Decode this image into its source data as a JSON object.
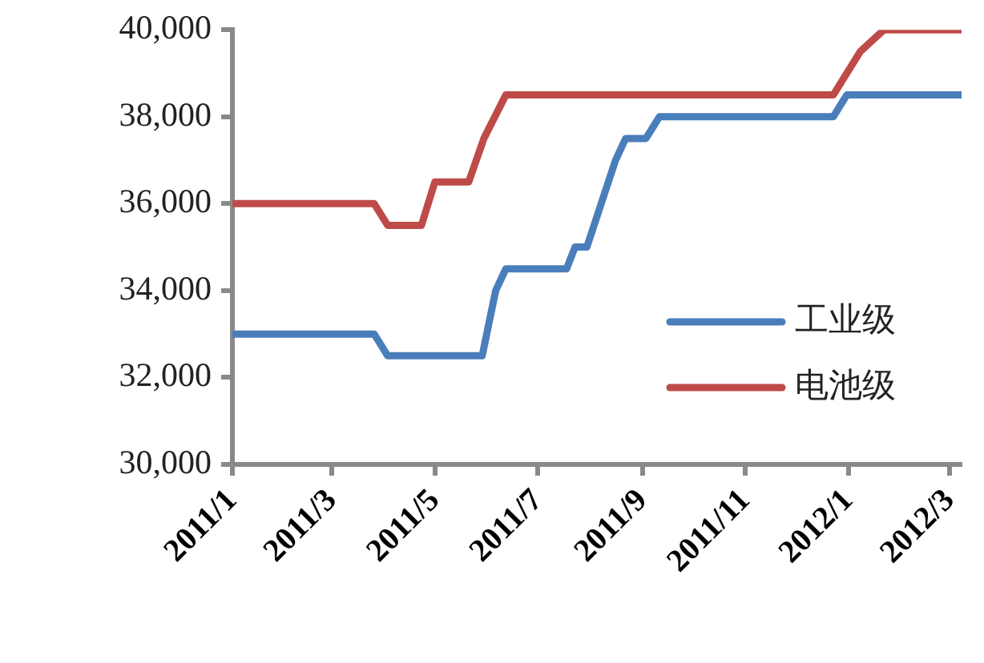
{
  "chart_data": {
    "type": "line",
    "series": [
      {
        "name": "工业级",
        "color": "#4a7ebb",
        "x": [
          "2011-01-01",
          "2011-03-26",
          "2011-04-03",
          "2011-05-29",
          "2011-06-06",
          "2011-06-12",
          "2011-07-18",
          "2011-07-23",
          "2011-07-30",
          "2011-08-16",
          "2011-08-22",
          "2011-09-03",
          "2011-09-11",
          "2011-12-23",
          "2011-12-31",
          "2012-03-08"
        ],
        "values": [
          33000,
          33000,
          32500,
          32500,
          34000,
          34500,
          34500,
          35000,
          35000,
          37000,
          37500,
          37500,
          38000,
          38000,
          38500,
          38500
        ]
      },
      {
        "name": "电池级",
        "color": "#be4b48",
        "x": [
          "2011-01-01",
          "2011-03-26",
          "2011-04-03",
          "2011-04-23",
          "2011-05-01",
          "2011-05-21",
          "2011-05-30",
          "2011-06-12",
          "2011-12-23",
          "2012-01-08",
          "2012-01-22",
          "2012-03-08"
        ],
        "values": [
          36000,
          36000,
          35500,
          35500,
          36500,
          36500,
          37500,
          38500,
          38500,
          39500,
          40000,
          40000
        ]
      }
    ],
    "xlim": [
      "2011-01-01",
      "2012-03-08"
    ],
    "xticks": [
      {
        "value": "2011-01-01",
        "label": "2011/1"
      },
      {
        "value": "2011-03-01",
        "label": "2011/3"
      },
      {
        "value": "2011-05-01",
        "label": "2011/5"
      },
      {
        "value": "2011-07-01",
        "label": "2011/7"
      },
      {
        "value": "2011-09-01",
        "label": "2011/9"
      },
      {
        "value": "2011-11-01",
        "label": "2011/11"
      },
      {
        "value": "2012-01-01",
        "label": "2012/1"
      },
      {
        "value": "2012-03-01",
        "label": "2012/3"
      }
    ],
    "ylim": [
      30000,
      40000
    ],
    "yticks": [
      {
        "value": 30000,
        "label": "30,000"
      },
      {
        "value": 32000,
        "label": "32,000"
      },
      {
        "value": 34000,
        "label": "34,000"
      },
      {
        "value": 36000,
        "label": "36,000"
      },
      {
        "value": 38000,
        "label": "38,000"
      },
      {
        "value": 40000,
        "label": "40,000"
      }
    ],
    "grid": false,
    "legend": "bottom right",
    "marker": "none",
    "line_style": "solid"
  }
}
